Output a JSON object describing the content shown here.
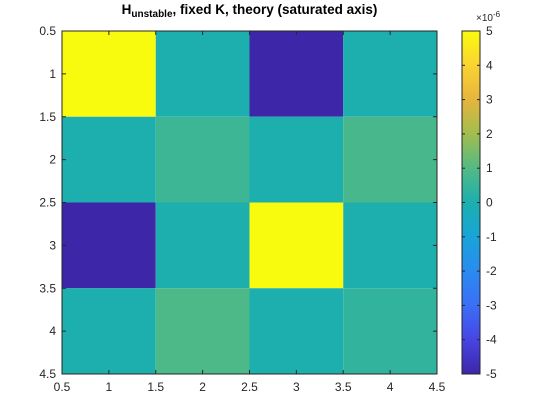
{
  "chart_data": {
    "type": "heatmap",
    "title": {
      "main": "H",
      "subscript": "unstable",
      "rest": ", fixed K, theory (saturated axis)"
    },
    "rows": [
      1,
      2,
      3,
      4
    ],
    "cols": [
      1,
      2,
      3,
      4
    ],
    "values": [
      [
        5.0,
        0.0,
        -5.0,
        0.0
      ],
      [
        0.0,
        0.6,
        0.0,
        0.8
      ],
      [
        -5.0,
        0.0,
        5.0,
        0.0
      ],
      [
        0.0,
        0.9,
        0.0,
        0.4
      ]
    ],
    "xlim": [
      0.5,
      4.5
    ],
    "ylim": [
      0.5,
      4.5
    ],
    "y_direction": "reverse",
    "x_ticks": [
      "0.5",
      "1",
      "1.5",
      "2",
      "2.5",
      "3",
      "3.5",
      "4",
      "4.5"
    ],
    "y_ticks": [
      "0.5",
      "1",
      "1.5",
      "2",
      "2.5",
      "3",
      "3.5",
      "4",
      "4.5"
    ],
    "colorbar": {
      "clim": [
        -5,
        5
      ],
      "ticks": [
        "5",
        "4",
        "3",
        "2",
        "1",
        "0",
        "-1",
        "-2",
        "-3",
        "-4",
        "-5"
      ],
      "exponent_base": "×10",
      "exponent_power": "-6",
      "colormap": "parula"
    }
  }
}
